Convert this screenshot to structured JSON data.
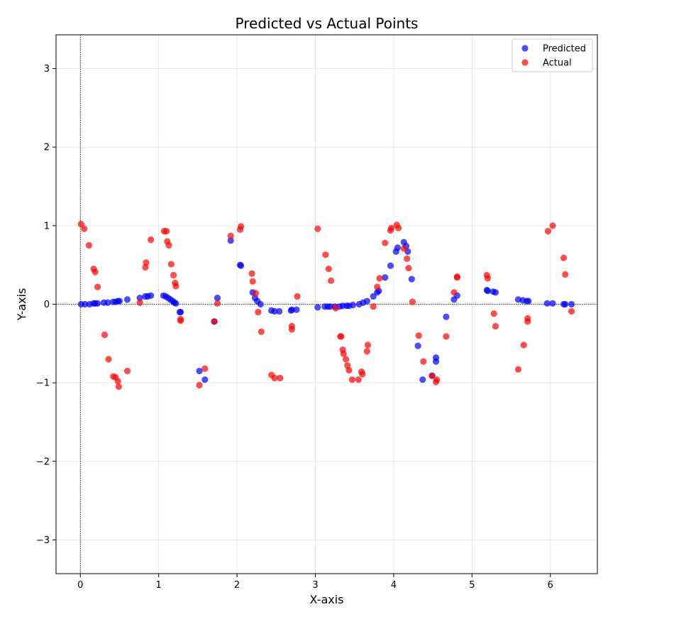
{
  "chart_data": {
    "type": "scatter",
    "title": "Predicted vs Actual Points",
    "xlabel": "X-axis",
    "ylabel": "Y-axis",
    "xlim": [
      -0.31,
      6.6
    ],
    "ylim": [
      -3.43,
      3.43
    ],
    "xticks": [
      0,
      1,
      2,
      3,
      4,
      5,
      6
    ],
    "yticks": [
      -3,
      -2,
      -1,
      0,
      1,
      2,
      3
    ],
    "grid": true,
    "legend_position": "top-right",
    "reference_lines": {
      "x": 0,
      "y": 0
    },
    "series": [
      {
        "name": "Predicted",
        "color": "#0000ff",
        "points": [
          [
            0.01,
            0.0
          ],
          [
            0.06,
            0.0
          ],
          [
            0.12,
            0.0
          ],
          [
            0.17,
            0.01
          ],
          [
            0.19,
            0.01
          ],
          [
            0.22,
            0.01
          ],
          [
            0.3,
            0.02
          ],
          [
            0.35,
            0.02
          ],
          [
            0.42,
            0.03
          ],
          [
            0.45,
            0.03
          ],
          [
            0.48,
            0.04
          ],
          [
            0.5,
            0.04
          ],
          [
            0.6,
            0.06
          ],
          [
            0.76,
            0.08
          ],
          [
            0.83,
            0.1
          ],
          [
            0.86,
            0.1
          ],
          [
            0.9,
            0.11
          ],
          [
            1.06,
            0.11
          ],
          [
            1.09,
            0.1
          ],
          [
            1.12,
            0.08
          ],
          [
            1.15,
            0.06
          ],
          [
            1.18,
            0.04
          ],
          [
            1.2,
            0.02
          ],
          [
            1.22,
            0.01
          ],
          [
            1.27,
            -0.1
          ],
          [
            1.28,
            -0.1
          ],
          [
            1.52,
            -0.85
          ],
          [
            1.59,
            -0.96
          ],
          [
            1.71,
            -0.22
          ],
          [
            1.75,
            0.08
          ],
          [
            1.92,
            0.81
          ],
          [
            2.04,
            0.5
          ],
          [
            2.05,
            0.49
          ],
          [
            2.2,
            0.15
          ],
          [
            2.23,
            0.08
          ],
          [
            2.26,
            0.04
          ],
          [
            2.3,
            0.0
          ],
          [
            2.44,
            -0.08
          ],
          [
            2.48,
            -0.09
          ],
          [
            2.54,
            -0.09
          ],
          [
            2.69,
            -0.08
          ],
          [
            2.7,
            -0.07
          ],
          [
            2.76,
            -0.07
          ],
          [
            3.03,
            -0.04
          ],
          [
            3.12,
            -0.03
          ],
          [
            3.16,
            -0.03
          ],
          [
            3.19,
            -0.03
          ],
          [
            3.25,
            -0.03
          ],
          [
            3.31,
            -0.03
          ],
          [
            3.35,
            -0.02
          ],
          [
            3.4,
            -0.02
          ],
          [
            3.43,
            -0.02
          ],
          [
            3.48,
            -0.01
          ],
          [
            3.56,
            0.0
          ],
          [
            3.61,
            0.02
          ],
          [
            3.66,
            0.04
          ],
          [
            3.74,
            0.1
          ],
          [
            3.79,
            0.15
          ],
          [
            3.81,
            0.17
          ],
          [
            3.89,
            0.34
          ],
          [
            3.96,
            0.49
          ],
          [
            4.03,
            0.67
          ],
          [
            4.05,
            0.72
          ],
          [
            4.13,
            0.79
          ],
          [
            4.16,
            0.74
          ],
          [
            4.18,
            0.67
          ],
          [
            4.23,
            0.32
          ],
          [
            4.31,
            -0.53
          ],
          [
            4.37,
            -0.96
          ],
          [
            4.49,
            -0.91
          ],
          [
            4.54,
            -0.68
          ],
          [
            4.54,
            -0.73
          ],
          [
            4.67,
            -0.16
          ],
          [
            4.77,
            0.06
          ],
          [
            4.81,
            0.11
          ],
          [
            5.19,
            0.18
          ],
          [
            5.2,
            0.17
          ],
          [
            5.27,
            0.16
          ],
          [
            5.3,
            0.15
          ],
          [
            5.59,
            0.06
          ],
          [
            5.65,
            0.05
          ],
          [
            5.7,
            0.04
          ],
          [
            5.72,
            0.04
          ],
          [
            5.96,
            0.01
          ],
          [
            6.03,
            0.01
          ],
          [
            6.17,
            0.0
          ],
          [
            6.19,
            0.0
          ],
          [
            6.27,
            0.0
          ]
        ]
      },
      {
        "name": "Actual",
        "color": "#ff0000",
        "points": [
          [
            0.01,
            1.02
          ],
          [
            0.05,
            0.96
          ],
          [
            0.11,
            0.75
          ],
          [
            0.17,
            0.45
          ],
          [
            0.19,
            0.41
          ],
          [
            0.22,
            0.22
          ],
          [
            0.31,
            -0.39
          ],
          [
            0.36,
            -0.7
          ],
          [
            0.42,
            -0.92
          ],
          [
            0.45,
            -0.93
          ],
          [
            0.48,
            -0.98
          ],
          [
            0.49,
            -1.05
          ],
          [
            0.6,
            -0.85
          ],
          [
            0.76,
            0.02
          ],
          [
            0.83,
            0.47
          ],
          [
            0.84,
            0.53
          ],
          [
            0.9,
            0.82
          ],
          [
            1.07,
            0.93
          ],
          [
            1.1,
            0.93
          ],
          [
            1.11,
            0.8
          ],
          [
            1.13,
            0.75
          ],
          [
            1.16,
            0.51
          ],
          [
            1.19,
            0.37
          ],
          [
            1.21,
            0.27
          ],
          [
            1.22,
            0.23
          ],
          [
            1.28,
            -0.19
          ],
          [
            1.28,
            -0.21
          ],
          [
            1.52,
            -1.03
          ],
          [
            1.59,
            -0.82
          ],
          [
            1.71,
            -0.22
          ],
          [
            1.75,
            0.01
          ],
          [
            1.92,
            0.87
          ],
          [
            2.04,
            0.95
          ],
          [
            2.05,
            0.99
          ],
          [
            2.19,
            0.39
          ],
          [
            2.2,
            0.29
          ],
          [
            2.24,
            0.14
          ],
          [
            2.27,
            -0.1
          ],
          [
            2.31,
            -0.35
          ],
          [
            2.44,
            -0.9
          ],
          [
            2.48,
            -0.94
          ],
          [
            2.55,
            -0.94
          ],
          [
            2.7,
            -0.28
          ],
          [
            2.7,
            -0.32
          ],
          [
            2.77,
            0.1
          ],
          [
            3.03,
            0.96
          ],
          [
            3.13,
            0.63
          ],
          [
            3.17,
            0.45
          ],
          [
            3.2,
            0.3
          ],
          [
            3.26,
            -0.05
          ],
          [
            3.32,
            -0.41
          ],
          [
            3.33,
            -0.41
          ],
          [
            3.35,
            -0.58
          ],
          [
            3.36,
            -0.63
          ],
          [
            3.39,
            -0.7
          ],
          [
            3.41,
            -0.78
          ],
          [
            3.43,
            -0.84
          ],
          [
            3.47,
            -0.96
          ],
          [
            3.55,
            -0.96
          ],
          [
            3.59,
            -0.86
          ],
          [
            3.6,
            -0.89
          ],
          [
            3.66,
            -0.6
          ],
          [
            3.67,
            -0.52
          ],
          [
            3.74,
            -0.03
          ],
          [
            3.79,
            0.22
          ],
          [
            3.82,
            0.33
          ],
          [
            3.89,
            0.78
          ],
          [
            3.96,
            0.94
          ],
          [
            3.97,
            0.97
          ],
          [
            4.04,
            1.01
          ],
          [
            4.06,
            0.97
          ],
          [
            4.13,
            0.71
          ],
          [
            4.17,
            0.58
          ],
          [
            4.19,
            0.46
          ],
          [
            4.24,
            0.03
          ],
          [
            4.32,
            -0.4
          ],
          [
            4.38,
            -0.73
          ],
          [
            4.49,
            -0.91
          ],
          [
            4.54,
            -0.99
          ],
          [
            4.55,
            -0.96
          ],
          [
            4.67,
            -0.41
          ],
          [
            4.77,
            0.15
          ],
          [
            4.81,
            0.34
          ],
          [
            4.81,
            0.35
          ],
          [
            5.19,
            0.37
          ],
          [
            5.2,
            0.33
          ],
          [
            5.28,
            -0.12
          ],
          [
            5.3,
            -0.28
          ],
          [
            5.59,
            -0.83
          ],
          [
            5.66,
            -0.52
          ],
          [
            5.71,
            -0.18
          ],
          [
            5.71,
            -0.22
          ],
          [
            5.97,
            0.93
          ],
          [
            6.03,
            1.0
          ],
          [
            6.17,
            0.59
          ],
          [
            6.19,
            0.38
          ],
          [
            6.27,
            -0.09
          ]
        ]
      }
    ]
  }
}
